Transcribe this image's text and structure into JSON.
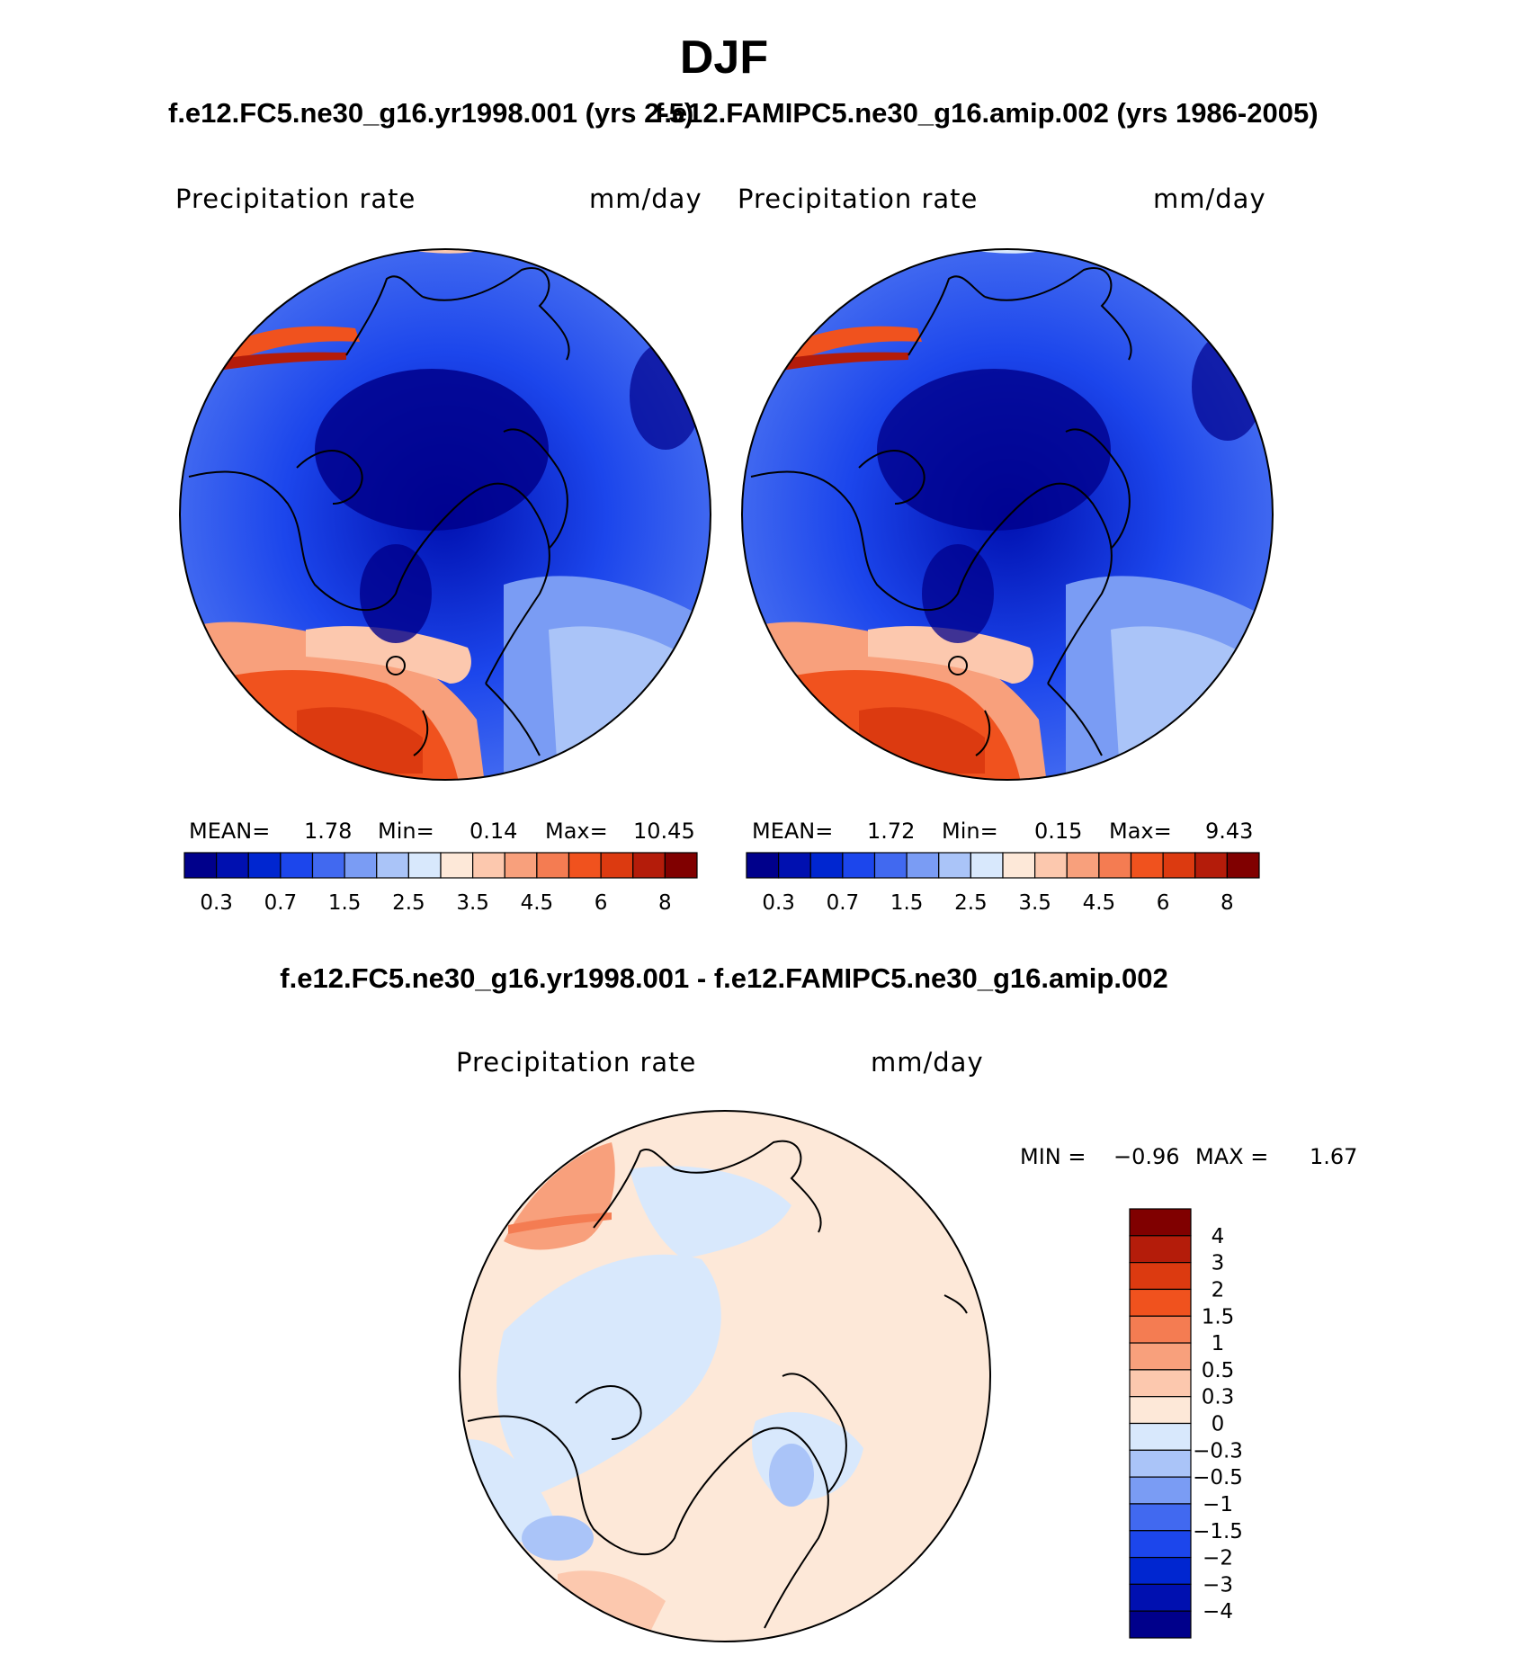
{
  "figure": {
    "title": "DJF",
    "case1_title": "f.e12.FC5.ne30_g16.yr1998.001 (yrs 2-5)",
    "case2_title": "f.e12.FAMIPC5.ne30_g16.amip.002 (yrs 1986-2005)",
    "diff_title": "f.e12.FC5.ne30_g16.yr1998.001 - f.e12.FAMIPC5.ne30_g16.amip.002"
  },
  "panels": [
    {
      "variable": "Precipitation  rate",
      "units": "mm/day",
      "mean_label": "MEAN=",
      "mean_value": "1.78",
      "min_label": "Min=",
      "min_value": "0.14",
      "max_label": "Max=",
      "max_value": "10.45"
    },
    {
      "variable": "Precipitation  rate",
      "units": "mm/day",
      "mean_label": "MEAN=",
      "mean_value": "1.72",
      "min_label": "Min=",
      "min_value": "0.15",
      "max_label": "Max=",
      "max_value": "9.43"
    }
  ],
  "diff_panel": {
    "variable": "Precipitation  rate",
    "units": "mm/day",
    "min_label": "MIN  =",
    "min_value": "−0.96",
    "max_label": "MAX  =",
    "max_value": "1.67"
  },
  "colorbar_main": {
    "colors": [
      "#00008b",
      "#0010b0",
      "#0026d0",
      "#1c46ec",
      "#4169f0",
      "#7a9cf4",
      "#aac4f8",
      "#d8e8fc",
      "#fde8d8",
      "#fcc8ae",
      "#f8a07c",
      "#f47c52",
      "#f0521e",
      "#dc3a10",
      "#b41c0a",
      "#800000"
    ],
    "tick_labels": [
      "0.3",
      "0.7",
      "1.5",
      "2.5",
      "3.5",
      "4.5",
      "6",
      "8"
    ]
  },
  "colorbar_diff": {
    "colors": [
      "#800000",
      "#b41c0a",
      "#dc3a10",
      "#f0521e",
      "#f47c52",
      "#f8a07c",
      "#fcc8ae",
      "#fde8d8",
      "#d8e8fc",
      "#aac4f8",
      "#7a9cf4",
      "#4169f0",
      "#1c46ec",
      "#0026d0",
      "#0010b0",
      "#00008b"
    ],
    "tick_labels": [
      "4",
      "3",
      "2",
      "1.5",
      "1",
      "0.5",
      "0.3",
      "0",
      "−0.3",
      "−0.5",
      "−1",
      "−1.5",
      "−2",
      "−3",
      "−4"
    ]
  }
}
